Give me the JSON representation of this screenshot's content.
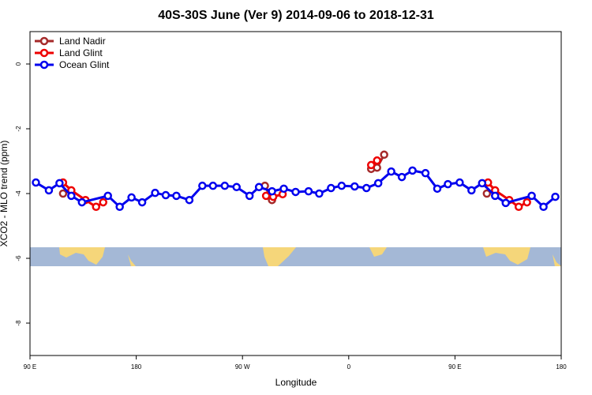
{
  "chart_data": {
    "type": "line",
    "title": "40S-30S June (Ver 9)   2014-09-06 to 2018-12-31",
    "xlabel": "Longitude",
    "ylabel": "XCO2 - MLO trend (ppm)",
    "xlim": [
      90,
      540
    ],
    "ylim": [
      -9,
      1
    ],
    "xticks": [
      {
        "value": 90,
        "label": "90 E"
      },
      180,
      {
        "value": 270,
        "label": "90 W"
      },
      {
        "value": 360,
        "label": "0"
      },
      {
        "value": 450,
        "label": "90 E"
      },
      {
        "value": 540,
        "label": "180"
      }
    ],
    "yticks": [
      0,
      -2,
      -4,
      -6,
      -8
    ],
    "legend": "top-left",
    "series": [
      {
        "name": "Land Nadir",
        "color": "#a52a2a",
        "x": [
          118,
          null,
          289,
          295,
          null,
          379,
          384,
          390,
          null,
          477
        ],
        "values": [
          -4.0,
          null,
          -3.76,
          -4.2,
          null,
          -3.24,
          -3.2,
          -2.8,
          null,
          -4.0
        ]
      },
      {
        "name": "Land Glint",
        "color": "#ee0000",
        "x": [
          118,
          125,
          137,
          146,
          152,
          null,
          290,
          296,
          304,
          null,
          379,
          384,
          null,
          478,
          484,
          496,
          504,
          511
        ],
        "values": [
          -3.66,
          -3.9,
          -4.2,
          -4.41,
          -4.27,
          null,
          -4.07,
          -4.1,
          -4.02,
          null,
          -3.12,
          -2.98,
          null,
          -3.66,
          -3.9,
          -4.2,
          -4.41,
          -4.27
        ]
      },
      {
        "name": "Ocean Glint",
        "color": "#0000ee",
        "x": [
          95,
          106,
          115,
          125,
          134,
          156,
          166,
          176,
          185,
          196,
          205,
          214,
          225,
          236,
          245,
          255,
          265,
          276,
          284,
          295,
          305,
          315,
          326,
          335,
          345,
          354,
          365,
          375,
          385,
          396,
          405,
          414,
          425,
          435,
          444,
          454,
          464,
          473,
          484,
          493,
          515,
          525,
          535
        ],
        "values": [
          -3.66,
          -3.9,
          -3.68,
          -4.07,
          -4.27,
          -4.07,
          -4.41,
          -4.12,
          -4.27,
          -3.98,
          -4.05,
          -4.07,
          -4.2,
          -3.76,
          -3.76,
          -3.76,
          -3.8,
          -4.07,
          -3.8,
          -3.93,
          -3.85,
          -3.95,
          -3.93,
          -4.0,
          -3.83,
          -3.76,
          -3.78,
          -3.83,
          -3.68,
          -3.32,
          -3.49,
          -3.29,
          -3.37,
          -3.85,
          -3.71,
          -3.66,
          -3.9,
          -3.68,
          -4.07,
          -4.29,
          -4.07,
          -4.41,
          -4.1
        ]
      }
    ]
  }
}
